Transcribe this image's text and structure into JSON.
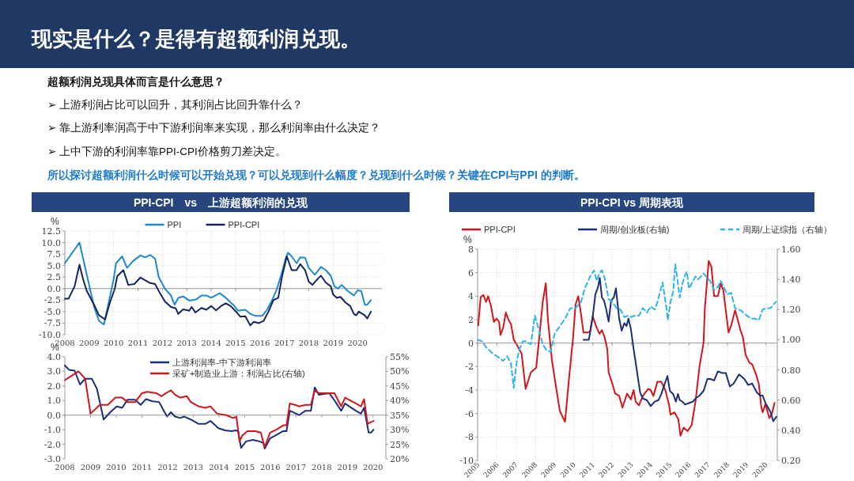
{
  "chart_data": [
    {
      "type": "other",
      "title": "现实是什么？是得有超额利润兑现。",
      "annotations": [
        "超额利润兑现具体而言是什么意思？",
        "➢  上游利润占比可以回升，其利润占比回升靠什么？",
        "➢  靠上游利率润高于中下游利润率来实现，那么利润率由什么决定？",
        "➢  上中下游的利润率靠PPI-CPI价格剪刀差决定。",
        "所以探讨超额利润什么时候可以开始兑现？可以兑现到什么幅度？兑现到什么时候？关键在CPI与PPI  的判断。"
      ]
    },
    {
      "type": "line",
      "title": "PPI-CPI　vs　上游超额利润的兑现",
      "ylabel": "%",
      "legend": "top",
      "grid": true,
      "xlim": [
        2008,
        2021
      ],
      "xticks": [
        2008,
        2009,
        2010,
        2011,
        2012,
        2013,
        2014,
        2015,
        2016,
        2017,
        2018,
        2019,
        2020
      ],
      "ylim": [
        -10,
        12.5
      ],
      "yticks": [
        {
          "value": -10,
          "label": "-10.0"
        },
        -7.5,
        {
          "value": -5,
          "label": "-5.0"
        },
        -2.5,
        {
          "value": 0,
          "label": "0.0"
        },
        2.5,
        {
          "value": 5,
          "label": "5.0"
        },
        7.5,
        {
          "value": 10,
          "label": "10.0"
        },
        12.5
      ],
      "series": [
        {
          "name": "PPI",
          "color": "#1e88d0",
          "x": [
            2008.0,
            2008.6,
            2008.9,
            2009.2,
            2009.4,
            2009.6,
            2009.8,
            2010.0,
            2010.1,
            2010.35,
            2010.55,
            2010.8,
            2011.1,
            2011.3,
            2011.5,
            2011.7,
            2011.85,
            2012.1,
            2012.35,
            2012.5,
            2012.65,
            2012.85,
            2013.1,
            2013.4,
            2013.6,
            2013.8,
            2014.0,
            2014.35,
            2014.6,
            2014.9,
            2015.1,
            2015.4,
            2015.6,
            2015.8,
            2016.1,
            2016.3,
            2016.5,
            2016.7,
            2016.9,
            2017.05,
            2017.15,
            2017.3,
            2017.5,
            2017.65,
            2017.85,
            2018.0,
            2018.25,
            2018.5,
            2018.7,
            2018.9,
            2019.05,
            2019.2,
            2019.35,
            2019.6,
            2019.85,
            2020.0,
            2020.15,
            2020.3,
            2020.4,
            2020.55
          ],
          "values": [
            5.5,
            10.0,
            3,
            -4,
            -7,
            -7.8,
            -3,
            2,
            5.5,
            7,
            4.5,
            6,
            7.2,
            6.8,
            7.3,
            6.5,
            2.5,
            0,
            -1.5,
            -3.5,
            -2,
            -1.7,
            -2.6,
            -2.3,
            -1.5,
            -1.5,
            -2,
            -1.0,
            -2,
            -3.5,
            -4.8,
            -4.6,
            -5.5,
            -5.9,
            -5.9,
            -4.5,
            -2.5,
            0,
            3.5,
            6.5,
            7.8,
            7,
            5.5,
            6.8,
            6.7,
            4.5,
            3,
            4.7,
            4,
            2.8,
            0.5,
            0,
            0.8,
            -0.5,
            -1.5,
            -0.4,
            -0.5,
            -3.5,
            -3.5,
            -2.5
          ]
        },
        {
          "name": "PPI-CPI",
          "color": "#14245e",
          "x": [
            2008.0,
            2008.15,
            2008.4,
            2008.6,
            2008.75,
            2008.9,
            2009.2,
            2009.4,
            2009.65,
            2009.85,
            2010.05,
            2010.15,
            2010.4,
            2010.6,
            2010.85,
            2011.1,
            2011.3,
            2011.5,
            2011.7,
            2011.9,
            2012.1,
            2012.35,
            2012.55,
            2012.65,
            2012.85,
            2013.1,
            2013.2,
            2013.35,
            2013.6,
            2013.8,
            2014.0,
            2014.2,
            2014.4,
            2014.6,
            2014.8,
            2015.05,
            2015.2,
            2015.4,
            2015.6,
            2015.75,
            2015.95,
            2016.15,
            2016.35,
            2016.55,
            2016.75,
            2016.9,
            2017.1,
            2017.3,
            2017.5,
            2017.65,
            2017.85,
            2018.0,
            2018.15,
            2018.4,
            2018.5,
            2018.7,
            2018.9,
            2019.0,
            2019.15,
            2019.3,
            2019.5,
            2019.7,
            2019.85,
            2019.95,
            2020.05,
            2020.3,
            2020.4,
            2020.55
          ],
          "values": [
            -2.2,
            -2.2,
            0.5,
            5.2,
            2,
            -0.5,
            -3.5,
            -5.8,
            -6.7,
            -3,
            0,
            2.7,
            4,
            0.8,
            1,
            2.4,
            1.8,
            1.2,
            1,
            -1,
            -2.8,
            -4,
            -4.3,
            -5.5,
            -4.5,
            -4.8,
            -4,
            -5.2,
            -4.2,
            -4.6,
            -3.8,
            -4.7,
            -3.8,
            -3.2,
            -3.8,
            -5.2,
            -6.1,
            -6.0,
            -8,
            -7.2,
            -7.5,
            -7,
            -5,
            -2.5,
            -2,
            2.5,
            7,
            4,
            4,
            5.3,
            4,
            1.5,
            0.8,
            2.3,
            2.8,
            1.3,
            0.5,
            -1.3,
            -2,
            -1.8,
            -3,
            -3.8,
            -5.5,
            -5.8,
            -5,
            -5.8,
            -6.5,
            -5
          ]
        }
      ]
    },
    {
      "type": "line",
      "ylabel": "%",
      "legend": "top",
      "xlim": [
        2008,
        2020.5
      ],
      "xticks": [
        2008,
        2009,
        2010,
        2011,
        2012,
        2013,
        2014,
        2015,
        2016,
        2017,
        2018,
        2019,
        2020
      ],
      "ylim": [
        -3,
        4
      ],
      "yticks": [
        {
          "value": -3,
          "label": "-3.0"
        },
        {
          "value": -2,
          "label": "-2.0"
        },
        {
          "value": -1,
          "label": "-1.0"
        },
        {
          "value": 0,
          "label": "0.0"
        },
        {
          "value": 1,
          "label": "1.0"
        },
        {
          "value": 2,
          "label": "2.0"
        },
        {
          "value": 3,
          "label": "3.0"
        },
        {
          "value": 4,
          "label": "4.0"
        }
      ],
      "y2lim": [
        20,
        55
      ],
      "y2ticks": [
        {
          "value": 20,
          "label": "20%"
        },
        {
          "value": 25,
          "label": "25%"
        },
        {
          "value": 30,
          "label": "30%"
        },
        {
          "value": 35,
          "label": "35%"
        },
        {
          "value": 40,
          "label": "40%"
        },
        {
          "value": 45,
          "label": "45%"
        },
        {
          "value": 50,
          "label": "50%"
        },
        {
          "value": 55,
          "label": "55%"
        }
      ],
      "series": [
        {
          "name": "上游利润率-中下游利润率",
          "color": "#1b2f78",
          "x": [
            2008.0,
            2008.17,
            2008.38,
            2008.59,
            2008.79,
            2009.05,
            2009.25,
            2009.51,
            2009.77,
            2010.02,
            2010.23,
            2010.44,
            2010.74,
            2010.95,
            2011.16,
            2011.41,
            2011.67,
            2011.82,
            2011.98,
            2012.13,
            2012.29,
            2012.49,
            2012.65,
            2012.9,
            2013.21,
            2013.47,
            2013.67,
            2013.98,
            2014.24,
            2014.5,
            2014.65,
            2014.75,
            2014.86,
            2015.06,
            2015.32,
            2015.57,
            2015.73,
            2015.78,
            2015.99,
            2016.19,
            2016.5,
            2016.63,
            2016.76,
            2017.12,
            2017.37,
            2017.58,
            2017.73,
            2017.89,
            2018.3,
            2018.5,
            2018.76,
            2018.91,
            2019.07,
            2019.33,
            2019.53,
            2019.65,
            2019.83,
            2019.92,
            2020.02
          ],
          "values": [
            3.4,
            3.1,
            3.05,
            2.1,
            2.5,
            2.5,
            1.8,
            -0.3,
            0.2,
            0.6,
            0.5,
            1.05,
            1.05,
            0.7,
            1.1,
            0.95,
            0.9,
            0.4,
            -0.1,
            0.2,
            -0.1,
            -0.2,
            -0.1,
            -0.3,
            -0.6,
            -0.6,
            -0.4,
            -0.9,
            -1.05,
            -1.1,
            -1.05,
            -1.1,
            -2.25,
            -1.8,
            -1.7,
            -1.8,
            -1.9,
            -2.3,
            -1.6,
            -1.4,
            -1.1,
            -1.1,
            0.3,
            0.0,
            0.3,
            0.3,
            1.9,
            1.4,
            1.5,
            1.0,
            0.3,
            0.8,
            0.6,
            0.3,
            0.1,
            0.5,
            -1.2,
            -1.2,
            -1.0
          ]
        },
        {
          "name": "采矿+制造业上游：利润占比(右轴)",
          "color": "#d0161e",
          "axis": "y2",
          "x": [
            2008.0,
            2008.17,
            2008.53,
            2008.79,
            2009.0,
            2009.36,
            2009.67,
            2009.97,
            2010.23,
            2010.44,
            2010.74,
            2011.0,
            2011.21,
            2011.57,
            2011.77,
            2011.93,
            2012.13,
            2012.29,
            2012.49,
            2012.75,
            2012.9,
            2013.21,
            2013.47,
            2013.67,
            2013.93,
            2014.29,
            2014.55,
            2014.68,
            2014.8,
            2014.91,
            2015.11,
            2015.42,
            2015.63,
            2015.78,
            2015.99,
            2016.24,
            2016.5,
            2016.63,
            2016.76,
            2016.96,
            2017.12,
            2017.37,
            2017.58,
            2017.73,
            2017.89,
            2018.09,
            2018.3,
            2018.5,
            2018.76,
            2018.91,
            2019.12,
            2019.33,
            2019.53,
            2019.65,
            2019.79,
            2019.89,
            2020.02
          ],
          "values": [
            47,
            48,
            50,
            47.5,
            35.5,
            38.5,
            38.5,
            41,
            41,
            39.5,
            39.5,
            42.5,
            43,
            42.5,
            41.5,
            42.5,
            43.5,
            42,
            41,
            41.5,
            39.5,
            38,
            37.5,
            38,
            35.5,
            35,
            34,
            34.5,
            26,
            28,
            29.5,
            29.5,
            29,
            24,
            29,
            30,
            31.5,
            31.5,
            39,
            38.5,
            38,
            38.5,
            38.5,
            43.5,
            42.5,
            42.5,
            42.5,
            42.5,
            38,
            41,
            40,
            39,
            38,
            40.5,
            32,
            32.5,
            33
          ]
        }
      ]
    },
    {
      "type": "line",
      "title": "PPI-CPI vs 周期表现",
      "ylabel": "%",
      "legend": "top",
      "grid": true,
      "xlim": [
        2005,
        2020.6
      ],
      "xticks": [
        2005,
        2006,
        2007,
        2008,
        2009,
        2010,
        2011,
        2012,
        2013,
        2014,
        2015,
        2016,
        2017,
        2018,
        2019,
        2020
      ],
      "ylim": [
        -10,
        8
      ],
      "yticks": [
        -10,
        -8,
        -6,
        -4,
        -2,
        0,
        2,
        4,
        6,
        8
      ],
      "y2lim": [
        0.2,
        1.6
      ],
      "y2ticks": [
        {
          "value": 0.2,
          "label": "0.20"
        },
        {
          "value": 0.4,
          "label": "0.40"
        },
        {
          "value": 0.6,
          "label": "0.60"
        },
        {
          "value": 0.8,
          "label": "0.80"
        },
        {
          "value": 1.0,
          "label": "1.00"
        },
        {
          "value": 1.2,
          "label": "1.20"
        },
        {
          "value": 1.4,
          "label": "1.40"
        },
        {
          "value": 1.6,
          "label": "1.60"
        }
      ],
      "series": [
        {
          "name": "PPI-CPI",
          "color": "#d0161e",
          "x": [
            2005.03,
            2005.16,
            2005.3,
            2005.44,
            2005.55,
            2005.69,
            2005.85,
            2005.99,
            2006.12,
            2006.19,
            2006.33,
            2006.47,
            2006.6,
            2006.74,
            2006.88,
            2007.09,
            2007.29,
            2007.5,
            2007.77,
            2008.05,
            2008.18,
            2008.39,
            2008.55,
            2008.66,
            2008.8,
            2008.87,
            2009.28,
            2009.55,
            2009.76,
            2009.97,
            2010.1,
            2010.24,
            2010.38,
            2010.51,
            2010.72,
            2010.86,
            2010.99,
            2011.2,
            2011.34,
            2011.47,
            2011.61,
            2011.75,
            2011.82,
            2012.02,
            2012.16,
            2012.37,
            2012.54,
            2012.78,
            2012.98,
            2013.12,
            2013.23,
            2013.4,
            2013.6,
            2013.74,
            2013.88,
            2014.01,
            2014.15,
            2014.36,
            2014.56,
            2014.77,
            2014.97,
            2015.04,
            2015.25,
            2015.45,
            2015.56,
            2015.73,
            2015.93,
            2016.14,
            2016.34,
            2016.55,
            2016.76,
            2016.83,
            2017.03,
            2017.17,
            2017.31,
            2017.51,
            2017.65,
            2017.79,
            2018.06,
            2018.2,
            2018.4,
            2018.54,
            2018.68,
            2018.81,
            2018.95,
            2019.16,
            2019.29,
            2019.5,
            2019.64,
            2019.77,
            2019.84,
            2019.98,
            2020.19,
            2020.32,
            2020.46
          ],
          "values": [
            1.5,
            3.9,
            4.1,
            3.5,
            4.0,
            3.2,
            1.8,
            2.1,
            1.8,
            0.7,
            1.3,
            2.6,
            2.0,
            1.6,
            0.3,
            -0.3,
            -0.9,
            -3.9,
            -2.5,
            -2.1,
            0,
            3.5,
            5.1,
            2,
            -0.3,
            -1.5,
            -5.8,
            -6.7,
            -3,
            0.5,
            3.3,
            4.0,
            2.5,
            0.9,
            0.9,
            1.0,
            2.3,
            1.3,
            0.8,
            1.1,
            0.5,
            -0.5,
            -2.5,
            -3.5,
            -4.3,
            -4.5,
            -5.5,
            -4.3,
            -4.8,
            -4,
            -5,
            -5.3,
            -4.5,
            -4.2,
            -3.9,
            -4,
            -4.5,
            -3.3,
            -3.3,
            -4,
            -5.3,
            -6.1,
            -5.9,
            -6.5,
            -7.9,
            -7.2,
            -7.5,
            -7,
            -5,
            -2,
            0,
            3,
            7,
            6.5,
            4,
            4,
            5.1,
            4.5,
            0.9,
            1.5,
            2.8,
            2.0,
            1.1,
            0.5,
            -1,
            -1.7,
            -1.8,
            -2.7,
            -3.5,
            -5.5,
            -5.9,
            -5.2,
            -6.4,
            -6,
            -5.1
          ]
        },
        {
          "name": "周期/创业板(右轴)",
          "color": "#1b2f78",
          "axis": "y2",
          "x": [
            2010.51,
            2010.79,
            2010.99,
            2011.13,
            2011.27,
            2011.36,
            2011.47,
            2011.58,
            2011.68,
            2011.82,
            2011.95,
            2012.09,
            2012.2,
            2012.37,
            2012.5,
            2012.64,
            2012.75,
            2012.85,
            2012.98,
            2013.12,
            2013.46,
            2013.6,
            2013.81,
            2014.01,
            2014.22,
            2014.42,
            2014.56,
            2014.88,
            2015.01,
            2015.18,
            2015.32,
            2015.43,
            2015.52,
            2015.66,
            2015.8,
            2016.0,
            2016.21,
            2016.34,
            2016.55,
            2016.76,
            2016.96,
            2017.1,
            2017.31,
            2017.51,
            2017.72,
            2017.92,
            2018.13,
            2018.33,
            2018.61,
            2018.88,
            2019.09,
            2019.29,
            2019.54,
            2019.71,
            2019.84,
            2019.98,
            2020.12,
            2020.25,
            2020.39,
            2020.56
          ],
          "values": [
            1.0,
            1.0,
            1.15,
            1.3,
            1.35,
            1.41,
            1.28,
            1.26,
            1.21,
            1.12,
            1.26,
            1.28,
            1.34,
            1.14,
            1.06,
            1.11,
            1.09,
            1.14,
            1.07,
            0.94,
            0.65,
            0.61,
            0.6,
            0.56,
            0.59,
            0.6,
            0.64,
            0.76,
            0.66,
            0.64,
            0.59,
            0.64,
            0.6,
            0.59,
            0.57,
            0.58,
            0.59,
            0.61,
            0.63,
            0.66,
            0.74,
            0.74,
            0.73,
            0.79,
            0.78,
            0.78,
            0.69,
            0.71,
            0.77,
            0.74,
            0.7,
            0.71,
            0.65,
            0.63,
            0.63,
            0.58,
            0.55,
            0.52,
            0.46,
            0.49
          ]
        },
        {
          "name": "周期/上证综指（右轴）",
          "color": "#2cb5f0",
          "axis": "y2",
          "line_style": "dashed",
          "x": [
            2005.0,
            2005.23,
            2005.44,
            2005.78,
            2006.12,
            2006.33,
            2006.54,
            2006.74,
            2006.88,
            2007.02,
            2007.15,
            2007.36,
            2007.5,
            2007.77,
            2007.98,
            2008.18,
            2008.39,
            2008.59,
            2008.8,
            2009.01,
            2009.28,
            2009.55,
            2009.83,
            2010.1,
            2010.38,
            2010.58,
            2010.86,
            2011.06,
            2011.2,
            2011.34,
            2011.47,
            2011.61,
            2011.82,
            2012.02,
            2012.23,
            2012.43,
            2012.64,
            2012.85,
            2012.98,
            2013.19,
            2013.4,
            2013.6,
            2013.81,
            2014.01,
            2014.22,
            2014.36,
            2014.63,
            2014.84,
            2014.9,
            2015.04,
            2015.18,
            2015.29,
            2015.38,
            2015.52,
            2015.66,
            2015.8,
            2015.89,
            2016.0,
            2016.14,
            2016.34,
            2016.48,
            2016.62,
            2016.76,
            2016.96,
            2017.1,
            2017.31,
            2017.51,
            2017.65,
            2017.85,
            2017.99,
            2018.2,
            2018.4,
            2018.61,
            2018.74,
            2019.02,
            2019.23,
            2019.43,
            2019.64,
            2019.84,
            2020.04,
            2020.25,
            2020.52
          ],
          "values": [
            1.0,
            0.99,
            0.95,
            0.91,
            0.88,
            0.86,
            0.89,
            0.84,
            0.68,
            0.84,
            0.93,
            0.99,
            0.99,
            0.97,
            1.16,
            1.07,
            0.97,
            0.93,
            0.92,
            1.04,
            1.09,
            1.14,
            1.21,
            1.21,
            1.25,
            1.34,
            1.42,
            1.46,
            1.39,
            1.44,
            1.46,
            1.41,
            1.27,
            1.25,
            1.21,
            1.2,
            1.15,
            1.16,
            1.15,
            1.16,
            1.16,
            1.21,
            1.18,
            1.22,
            1.2,
            1.25,
            1.38,
            1.2,
            1.13,
            1.25,
            1.32,
            1.5,
            1.42,
            1.28,
            1.37,
            1.43,
            1.45,
            1.34,
            1.37,
            1.42,
            1.4,
            1.42,
            1.44,
            1.41,
            1.39,
            1.33,
            1.35,
            1.39,
            1.34,
            1.3,
            1.31,
            1.21,
            1.2,
            1.19,
            1.16,
            1.14,
            1.14,
            1.13,
            1.2,
            1.21,
            1.21,
            1.25
          ]
        }
      ]
    }
  ]
}
